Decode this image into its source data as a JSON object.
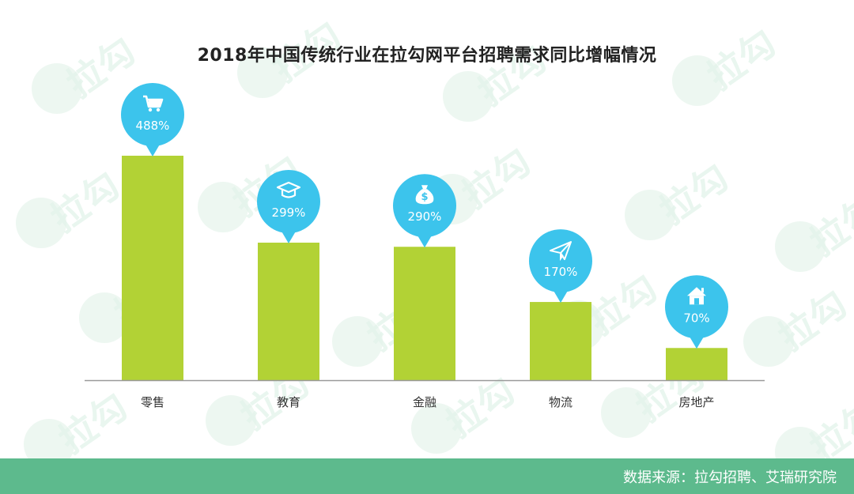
{
  "chart_data": {
    "type": "bar",
    "title": "2018年中国传统行业在拉勾网平台招聘需求同比增幅情况",
    "categories": [
      "零售",
      "教育",
      "金融",
      "物流",
      "房地产"
    ],
    "values": [
      488,
      299,
      290,
      170,
      70
    ],
    "value_labels": [
      "488%",
      "299%",
      "290%",
      "170%",
      "70%"
    ],
    "icons": [
      "shopping-cart-icon",
      "graduation-cap-icon",
      "money-bag-icon",
      "paper-plane-icon",
      "house-icon"
    ],
    "ylim": [
      0,
      500
    ],
    "grid": false,
    "legend": "none"
  },
  "footer": {
    "source": "数据来源：拉勾招聘、艾瑞研究院"
  },
  "watermark": {
    "text": "拉勾"
  },
  "colors": {
    "bar": "#b2d235",
    "bubble": "#3cc4ec",
    "footer": "#5dba8d",
    "axis": "#999999"
  }
}
